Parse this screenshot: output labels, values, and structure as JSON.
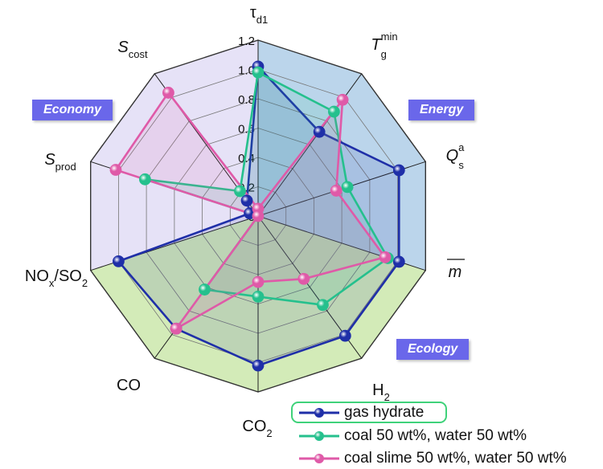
{
  "chart_data": {
    "type": "radar",
    "rmax": 1.2,
    "ticks": [
      "0",
      "0.2",
      "0.4",
      "0.6",
      "0.8",
      "1.0",
      "1.2"
    ],
    "axes": [
      {
        "main": "τ",
        "sub": "d1",
        "sup": ""
      },
      {
        "main": "T",
        "sub": "g",
        "sup": "min"
      },
      {
        "main": "Q",
        "sub": "s",
        "sup": "a"
      },
      {
        "main": "m",
        "sub": "",
        "sup": ""
      },
      {
        "main": "H",
        "sub": "2",
        "sup": ""
      },
      {
        "main": "CO",
        "sub": "2",
        "sup": ""
      },
      {
        "main": "CO",
        "sub": "",
        "sup": ""
      },
      {
        "main": "NO",
        "sub": "x",
        "sup": "",
        "tail": "/SO",
        "tail_sub": "2"
      },
      {
        "main": "S",
        "sub": "prod",
        "sup": ""
      },
      {
        "main": "S",
        "sub": "cost",
        "sup": ""
      }
    ],
    "sectors": [
      {
        "name": "Energy",
        "color": "#8db9dd"
      },
      {
        "name": "Ecology",
        "color": "#b5dd88"
      },
      {
        "name": "Economy",
        "color": "#ddd8f4"
      }
    ],
    "series": [
      {
        "name": "gas hydrate",
        "color": "#1f2fa8",
        "values": [
          1.02,
          0.71,
          1.01,
          1.01,
          1.01,
          1.02,
          0.95,
          1.0,
          0.06,
          0.13
        ]
      },
      {
        "name": "coal 50 wt%, water 50 wt%",
        "color": "#25c08d",
        "values": [
          0.98,
          0.88,
          0.64,
          0.93,
          0.75,
          0.55,
          0.62,
          0.0,
          0.81,
          0.21
        ]
      },
      {
        "name": "coal slime 50 wt%, water 50 wt%",
        "color": "#df5aa8",
        "values": [
          0.05,
          0.98,
          0.56,
          0.91,
          0.53,
          0.45,
          0.95,
          0.0,
          1.02,
          1.04
        ]
      }
    ]
  },
  "badges": {
    "economy": "Economy",
    "energy": "Energy",
    "ecology": "Ecology"
  },
  "legend": [
    {
      "label": "gas hydrate"
    },
    {
      "label": "coal 50 wt%, water 50 wt%"
    },
    {
      "label": "coal slime 50 wt%, water 50 wt%"
    }
  ]
}
